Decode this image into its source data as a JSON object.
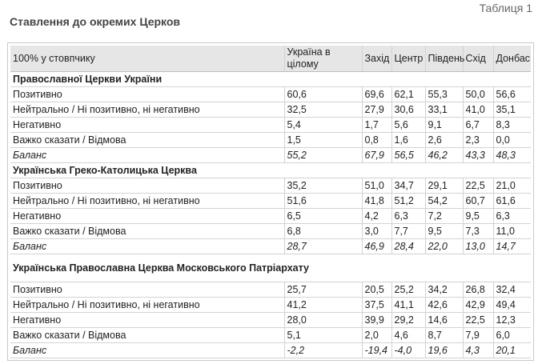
{
  "table_number": "Таблиця 1",
  "title": "Ставлення до окремих Церков",
  "columns": [
    "100% у стовпчику",
    "Україна в цілому",
    "Захід",
    "Центр",
    "Південь",
    "Схід",
    "Донбас"
  ],
  "sections": [
    {
      "title": "Православної Церкви України",
      "rows": [
        {
          "label": "Позитивно",
          "values": [
            "60,6",
            "69,6",
            "62,1",
            "55,3",
            "50,0",
            "56,6"
          ]
        },
        {
          "label": "Нейтрально / Ні позитивно, ні негативно",
          "values": [
            "32,5",
            "27,9",
            "30,6",
            "33,1",
            "41,0",
            "35,1"
          ]
        },
        {
          "label": "Негативно",
          "values": [
            "5,4",
            "1,7",
            "5,6",
            "9,1",
            "6,7",
            "8,3"
          ]
        },
        {
          "label": "Важко сказати / Відмова",
          "values": [
            "1,5",
            "0,8",
            "1,6",
            "2,6",
            "2,3",
            "0,0"
          ]
        },
        {
          "label": "Баланс",
          "values": [
            "55,2",
            "67,9",
            "56,5",
            "46,2",
            "43,3",
            "48,3"
          ],
          "balance": true
        }
      ]
    },
    {
      "title": "Українська Греко-Католицька Церква",
      "rows": [
        {
          "label": "Позитивно",
          "values": [
            "35,2",
            "51,0",
            "34,7",
            "29,1",
            "22,5",
            "21,0"
          ]
        },
        {
          "label": "Нейтрально / Ні позитивно, ні негативно",
          "values": [
            "51,6",
            "41,8",
            "51,2",
            "54,2",
            "60,7",
            "61,6"
          ]
        },
        {
          "label": "Негативно",
          "values": [
            "6,5",
            "4,2",
            "6,3",
            "7,2",
            "9,5",
            "6,3"
          ]
        },
        {
          "label": "Важко сказати / Відмова",
          "values": [
            "6,8",
            "3,0",
            "7,7",
            "9,5",
            "7,3",
            "11,0"
          ]
        },
        {
          "label": "Баланс",
          "values": [
            "28,7",
            "46,9",
            "28,4",
            "22,0",
            "13,0",
            "14,7"
          ],
          "balance": true
        }
      ]
    },
    {
      "title": "Українська Православна Церква Московського Патріархату",
      "rows": [
        {
          "label": "Позитивно",
          "values": [
            "25,7",
            "20,5",
            "25,2",
            "34,2",
            "26,8",
            "32,4"
          ]
        },
        {
          "label": "Нейтрально / Ні позитивно, ні негативно",
          "values": [
            "41,2",
            "37,5",
            "41,1",
            "42,6",
            "42,9",
            "49,4"
          ]
        },
        {
          "label": "Негативно",
          "values": [
            "28,0",
            "39,9",
            "29,2",
            "14,6",
            "22,5",
            "12,3"
          ]
        },
        {
          "label": "Важко сказати / Відмова",
          "values": [
            "5,1",
            "2,0",
            "4,6",
            "8,7",
            "7,9",
            "6,0"
          ]
        },
        {
          "label": "Баланс",
          "values": [
            "-2,2",
            "-19,4",
            "-4,0",
            "19,6",
            "4,3",
            "20,1"
          ],
          "balance": true
        }
      ]
    }
  ]
}
